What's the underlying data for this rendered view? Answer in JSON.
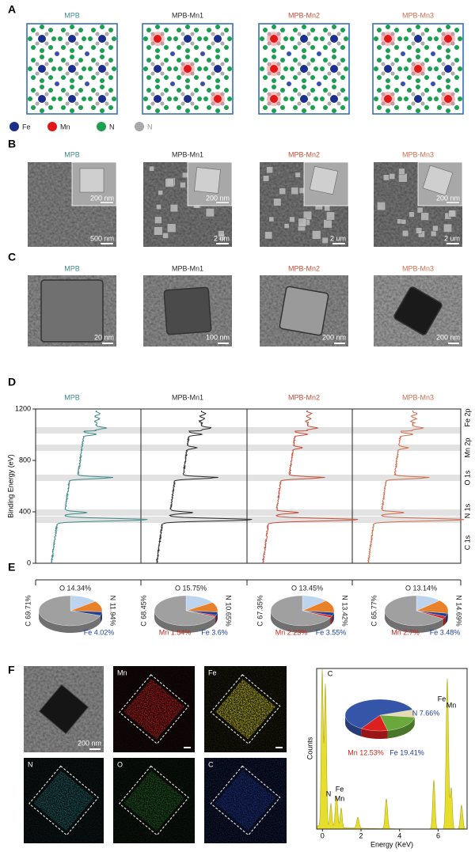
{
  "panel_labels": [
    "A",
    "B",
    "C",
    "D",
    "E",
    "F"
  ],
  "samples": [
    {
      "name": "MPB",
      "color": "#3f8a8a"
    },
    {
      "name": "MPB-Mn1",
      "color": "#2a2a2a"
    },
    {
      "name": "MPB-Mn2",
      "color": "#c4503a"
    },
    {
      "name": "MPB-Mn3",
      "color": "#cf6f4f"
    }
  ],
  "legend": [
    {
      "label": "Fe",
      "color": "#1c2f8c"
    },
    {
      "label": "Mn",
      "color": "#e01818"
    },
    {
      "label": "N",
      "color": "#1aa050"
    },
    {
      "label": "N",
      "color": "#a8a8a8"
    }
  ],
  "sem_scale_bars": [
    {
      "main": "500 nm",
      "inset": "200 nm"
    },
    {
      "main": "2 um",
      "inset": "200 nm"
    },
    {
      "main": "2 um"
    },
    {
      "main": "2 um",
      "inset": "200 nm"
    }
  ],
  "tem_scale_bars": [
    "20 nm",
    "100 nm",
    "200 nm",
    "200 nm"
  ],
  "eds_maps": {
    "labels": [
      "Mn",
      "Fe",
      "N",
      "O",
      "C"
    ],
    "scale_bar": "200 nm"
  },
  "chart_data": [
    {
      "type": "spectrum",
      "ylabel": "Binding Energy (eV)",
      "ylim": [
        0,
        1200
      ],
      "yticks": [
        0,
        400,
        800,
        1200
      ],
      "peak_labels": [
        "C 1s",
        "N 1s",
        "O 1s",
        "Mn 2p",
        "Fe 2p"
      ]
    },
    {
      "type": "pie",
      "categories": [
        "O",
        "N",
        "Fe",
        "C"
      ],
      "values": [
        14.34,
        11.94,
        4.02,
        69.71
      ],
      "value_labels": [
        "O 14.34%",
        "N 11.94%",
        "Fe 4.02%",
        "C 69.71%"
      ],
      "colors": [
        "#bcd4ee",
        "#e8822a",
        "#1e3f96",
        "#a0a0a0"
      ]
    },
    {
      "type": "pie",
      "categories": [
        "O",
        "N",
        "Fe",
        "Mn",
        "C"
      ],
      "values": [
        15.75,
        10.65,
        3.6,
        1.54,
        68.45
      ],
      "value_labels": [
        "O 15.75%",
        "N 10.65%",
        "Fe 3.6%",
        "Mn 1.54%",
        "C 68.45%"
      ],
      "colors": [
        "#bcd4ee",
        "#e8822a",
        "#1e3f96",
        "#d42424",
        "#a0a0a0"
      ]
    },
    {
      "type": "pie",
      "categories": [
        "O",
        "N",
        "Fe",
        "Mn",
        "C"
      ],
      "values": [
        13.45,
        13.42,
        3.55,
        2.23,
        67.35
      ],
      "value_labels": [
        "O 13.45%",
        "N 13.42%",
        "Fe 3.55%",
        "Mn 2.23%",
        "C 67.35%"
      ],
      "colors": [
        "#bcd4ee",
        "#e8822a",
        "#1e3f96",
        "#d42424",
        "#a0a0a0"
      ]
    },
    {
      "type": "pie",
      "categories": [
        "O",
        "N",
        "Fe",
        "Mn",
        "C"
      ],
      "values": [
        13.14,
        14.69,
        3.48,
        2.7,
        65.77
      ],
      "value_labels": [
        "O 13.14%",
        "N 14.69%",
        "Fe 3.48%",
        "Mn 2.7%",
        "C 65.77%"
      ],
      "colors": [
        "#bcd4ee",
        "#e8822a",
        "#1e3f96",
        "#d42424",
        "#a0a0a0"
      ]
    },
    {
      "type": "spectrum",
      "xlabel": "Energy (KeV)",
      "ylabel": "Counts",
      "xlim": [
        -0.3,
        7.5
      ],
      "xticks": [
        0,
        2,
        4,
        6
      ],
      "peak_labels": [
        "C",
        "N",
        "Fe",
        "Mn",
        "Fe",
        "Mn"
      ],
      "color": "#e6de2a"
    },
    {
      "type": "pie",
      "categories": [
        "N",
        "Fe",
        "Mn",
        null
      ],
      "values": [
        7.66,
        19.41,
        12.53,
        60.4
      ],
      "value_labels": [
        "N 7.66%",
        "Fe 19.41%",
        "Mn 12.53%",
        null
      ],
      "colors": [
        "#e6dbb0",
        "#6aa83c",
        "#dc2020",
        "#3556a8"
      ]
    }
  ]
}
